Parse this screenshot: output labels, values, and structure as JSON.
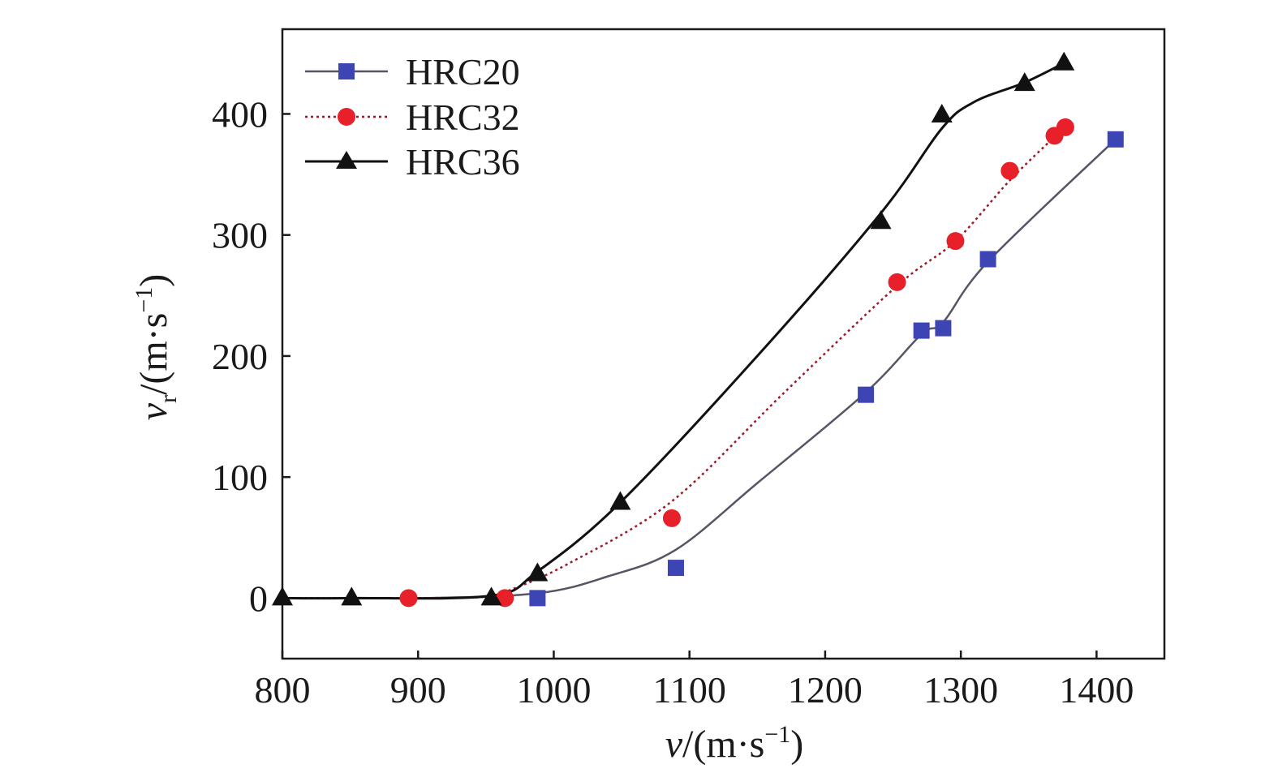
{
  "chart_data": {
    "type": "scatter",
    "title": "",
    "xlabel": {
      "var": "v",
      "units": "/(m·s",
      "exp": "−1",
      "close": ")"
    },
    "ylabel": {
      "var": "v",
      "sub": "r",
      "units": "/(m·s",
      "exp": "−1",
      "close": ")"
    },
    "xlim": [
      800,
      1450
    ],
    "ylim": [
      -50,
      470
    ],
    "xticks": [
      800,
      900,
      1000,
      1100,
      1200,
      1300,
      1400
    ],
    "yticks": [
      0,
      100,
      200,
      300,
      400
    ],
    "grid": false,
    "legend_position": "top-left",
    "series": [
      {
        "name": "HRC20",
        "marker": "square",
        "line": "solid",
        "color": "#3d45b5",
        "line_color": "#555566",
        "x": [
          988,
          1090,
          1230,
          1271,
          1287,
          1320,
          1414
        ],
        "y": [
          0,
          25,
          168,
          221,
          223,
          280,
          379
        ],
        "curve_x": [
          800,
          900,
          988,
          1040,
          1090,
          1150,
          1230,
          1271,
          1287,
          1320,
          1414
        ],
        "curve_y": [
          0,
          0,
          4,
          18,
          40,
          95,
          170,
          218,
          228,
          278,
          379
        ]
      },
      {
        "name": "HRC32",
        "marker": "circle",
        "line": "dotted",
        "color": "#e8202a",
        "line_color": "#9a1a28",
        "x": [
          893,
          964,
          1087,
          1253,
          1296,
          1336,
          1369,
          1377
        ],
        "y": [
          0,
          0,
          66,
          261,
          295,
          353,
          382,
          389
        ],
        "curve_x": [
          800,
          893,
          950,
          964,
          1010,
          1087,
          1170,
          1253,
          1296,
          1336,
          1369,
          1377
        ],
        "curve_y": [
          0,
          0,
          1,
          5,
          28,
          80,
          170,
          258,
          295,
          345,
          381,
          389
        ]
      },
      {
        "name": "HRC36",
        "marker": "triangle",
        "line": "solid",
        "color": "#111111",
        "line_color": "#111111",
        "x": [
          800,
          851,
          954,
          988,
          1049,
          1241,
          1286,
          1347,
          1376
        ],
        "y": [
          0,
          0,
          0,
          20,
          79,
          311,
          399,
          425,
          442
        ],
        "curve_x": [
          800,
          851,
          954,
          988,
          1049,
          1150,
          1241,
          1286,
          1310,
          1347,
          1376
        ],
        "curve_y": [
          0,
          0,
          2,
          22,
          79,
          200,
          318,
          388,
          410,
          426,
          442
        ]
      }
    ]
  }
}
